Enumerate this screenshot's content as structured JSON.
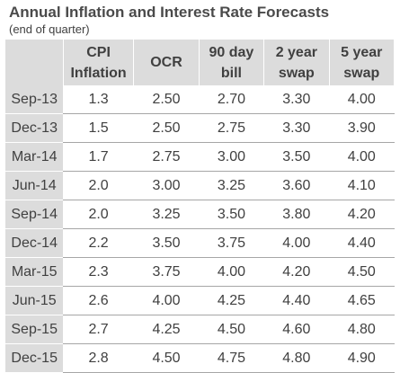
{
  "title": "Annual Inflation and Interest Rate Forecasts",
  "subtitle": "(end of quarter)",
  "chart_data": {
    "type": "table",
    "title": "Annual Inflation and Interest Rate Forecasts",
    "subtitle": "(end of quarter)",
    "columns": [
      {
        "line1": "CPI",
        "line2": "Inflation"
      },
      {
        "line1": "OCR",
        "line2": ""
      },
      {
        "line1": "90 day",
        "line2": "bill"
      },
      {
        "line1": "2 year",
        "line2": "swap"
      },
      {
        "line1": "5 year",
        "line2": "swap"
      }
    ],
    "rows": [
      {
        "label": "Sep-13",
        "values": [
          "1.3",
          "2.50",
          "2.70",
          "3.30",
          "4.00"
        ]
      },
      {
        "label": "Dec-13",
        "values": [
          "1.5",
          "2.50",
          "2.75",
          "3.30",
          "3.90"
        ]
      },
      {
        "label": "Mar-14",
        "values": [
          "1.7",
          "2.75",
          "3.00",
          "3.50",
          "4.00"
        ]
      },
      {
        "label": "Jun-14",
        "values": [
          "2.0",
          "3.00",
          "3.25",
          "3.60",
          "4.10"
        ]
      },
      {
        "label": "Sep-14",
        "values": [
          "2.0",
          "3.25",
          "3.50",
          "3.80",
          "4.20"
        ]
      },
      {
        "label": "Dec-14",
        "values": [
          "2.2",
          "3.50",
          "3.75",
          "4.00",
          "4.40"
        ]
      },
      {
        "label": "Mar-15",
        "values": [
          "2.3",
          "3.75",
          "4.00",
          "4.20",
          "4.50"
        ]
      },
      {
        "label": "Jun-15",
        "values": [
          "2.6",
          "4.00",
          "4.25",
          "4.40",
          "4.65"
        ]
      },
      {
        "label": "Sep-15",
        "values": [
          "2.7",
          "4.25",
          "4.50",
          "4.60",
          "4.80"
        ]
      },
      {
        "label": "Dec-15",
        "values": [
          "2.8",
          "4.50",
          "4.75",
          "4.80",
          "4.90"
        ]
      }
    ]
  },
  "colors": {
    "header_bg": "#dcdcdc",
    "text": "#404040",
    "row_rule": "#a6a6a6"
  }
}
